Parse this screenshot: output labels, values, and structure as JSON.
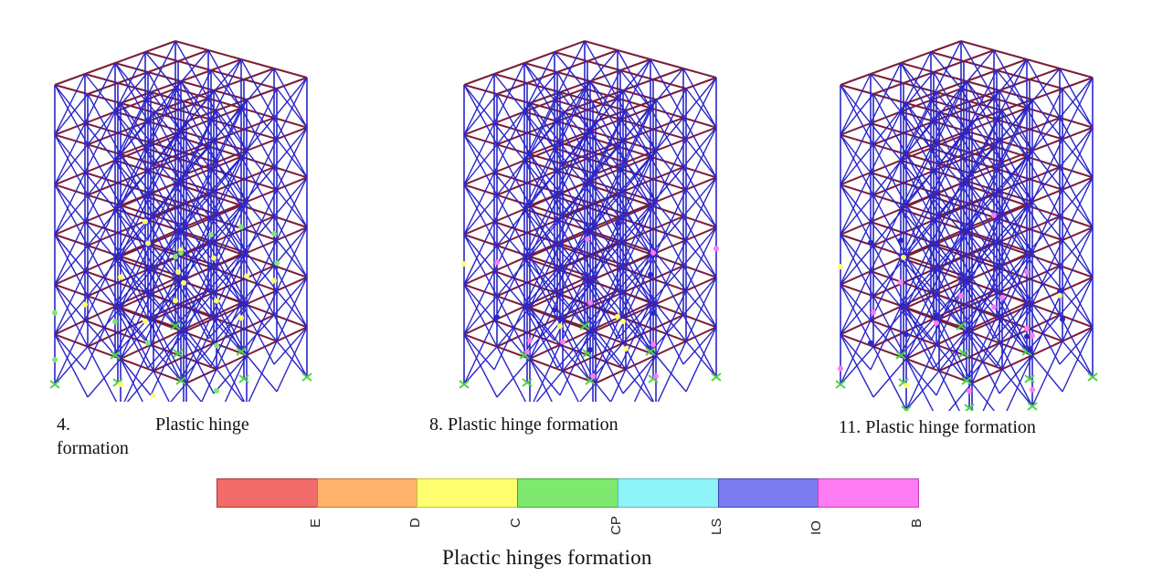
{
  "figures": [
    {
      "number": "4.",
      "caption_rest": "Plastic hinge",
      "caption_wrap": "formation"
    },
    {
      "caption": "8. Plastic hinge formation"
    },
    {
      "caption": "11. Plastic hinge formation"
    }
  ],
  "legend": {
    "title": "Plactic hinges formation",
    "levels": [
      {
        "label": "E",
        "color": "#f26b6b"
      },
      {
        "label": "D",
        "color": "#ffb36b"
      },
      {
        "label": "C",
        "color": "#ffff70"
      },
      {
        "label": "CP",
        "color": "#7ee86f"
      },
      {
        "label": "LS",
        "color": "#8ff4f7"
      },
      {
        "label": "IO",
        "color": "#7a7cf0"
      },
      {
        "label": "B",
        "color": "#ff7bf3"
      }
    ]
  },
  "colors": {
    "braces": "#2a26c8",
    "beams": "#7a1e3a",
    "supports": "#4fd24a"
  }
}
